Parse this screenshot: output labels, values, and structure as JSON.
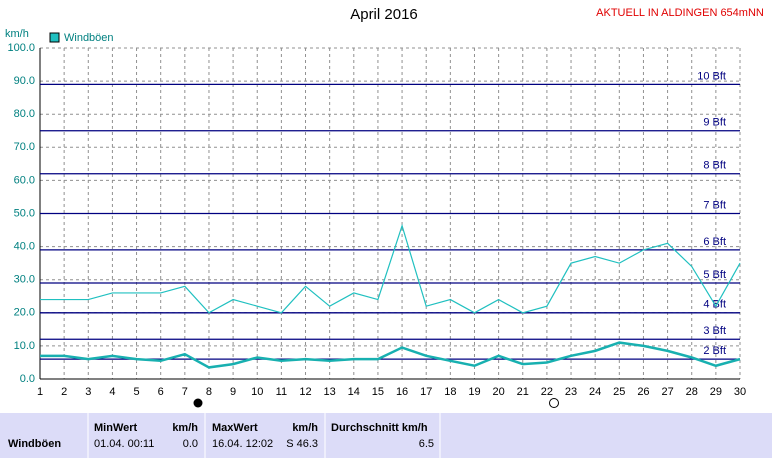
{
  "chart_data": {
    "type": "line",
    "title": "April 2016",
    "subtitle": "AKTUELL IN ALDINGEN 654mNN",
    "y_label": "km/h",
    "x": [
      1,
      2,
      3,
      4,
      5,
      6,
      7,
      8,
      9,
      10,
      11,
      12,
      13,
      14,
      15,
      16,
      17,
      18,
      19,
      20,
      21,
      22,
      23,
      24,
      25,
      26,
      27,
      28,
      29,
      30
    ],
    "xlim": [
      1,
      30
    ],
    "xticks": [
      1,
      2,
      3,
      4,
      5,
      6,
      7,
      8,
      9,
      10,
      11,
      12,
      13,
      14,
      15,
      16,
      17,
      18,
      19,
      20,
      21,
      22,
      23,
      24,
      25,
      26,
      27,
      28,
      29,
      30
    ],
    "ylim": [
      0,
      100
    ],
    "yticks": [
      {
        "value": 0,
        "label": "0.0"
      },
      {
        "value": 10,
        "label": "10.0"
      },
      {
        "value": 20,
        "label": "20.0"
      },
      {
        "value": 30,
        "label": "30.0"
      },
      {
        "value": 40,
        "label": "40.0"
      },
      {
        "value": 50,
        "label": "50.0"
      },
      {
        "value": 60,
        "label": "60.0"
      },
      {
        "value": 70,
        "label": "70.0"
      },
      {
        "value": 80,
        "label": "80.0"
      },
      {
        "value": 90,
        "label": "90.0"
      },
      {
        "value": 100,
        "label": "100.0"
      }
    ],
    "grid": true,
    "thresholds": [
      {
        "value": 6,
        "label": "2 Bft"
      },
      {
        "value": 12,
        "label": "3 Bft"
      },
      {
        "value": 20,
        "label": "4 Bft"
      },
      {
        "value": 29,
        "label": "5 Bft"
      },
      {
        "value": 39,
        "label": "6 Bft"
      },
      {
        "value": 50,
        "label": "7 Bft"
      },
      {
        "value": 62,
        "label": "8 Bft"
      },
      {
        "value": 75,
        "label": "9 Bft"
      },
      {
        "value": 89,
        "label": "10 Bft"
      }
    ],
    "threshold_color": "#000080",
    "series": [
      {
        "name": "Windböen",
        "color": "#20c0c0",
        "values": [
          24,
          24,
          24,
          26,
          26,
          26,
          28,
          20,
          24,
          22,
          20,
          28,
          22,
          26,
          24,
          46.3,
          22,
          24,
          20,
          24,
          20,
          22,
          35,
          37,
          35,
          39,
          41,
          34,
          22,
          35
        ]
      },
      {
        "color": "#18b0b0",
        "values": [
          7,
          7,
          6,
          7,
          6,
          5.5,
          7.5,
          3.5,
          4.5,
          6.5,
          5.5,
          6,
          5.5,
          6,
          6,
          9.5,
          7,
          5.5,
          4,
          7,
          4.5,
          5,
          7,
          8.5,
          11,
          10,
          8.5,
          6.5,
          4,
          6
        ]
      }
    ]
  },
  "stats": {
    "headers": [
      "MinWert",
      "km/h",
      "MaxWert",
      "km/h",
      "Durchschnitt km/h"
    ],
    "row": [
      "Windböen",
      "01.04.  00:11",
      "0.0",
      "16.04.  12:02",
      "S 46.3",
      "6.5"
    ]
  }
}
